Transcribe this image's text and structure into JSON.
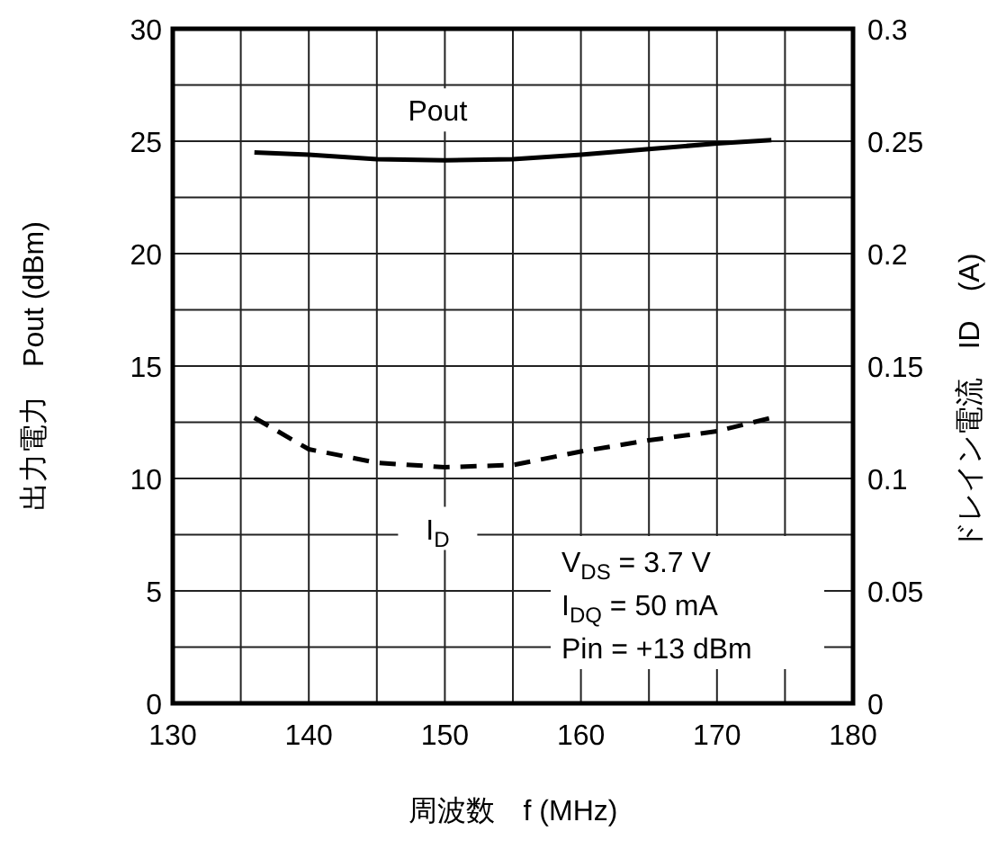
{
  "chart_data": {
    "type": "line",
    "xlabel": "周波数　f (MHz)",
    "ylabel": "出力電力　Pout (dBm)",
    "y2label": "ドレイン電流　ID　(A)",
    "xlim": [
      130,
      180
    ],
    "xticks": [
      130,
      140,
      150,
      160,
      170,
      180
    ],
    "ylim": [
      0,
      30
    ],
    "yticks": [
      0,
      5,
      10,
      15,
      20,
      25,
      30
    ],
    "y2lim": [
      0,
      0.3
    ],
    "y2ticks": [
      0,
      0.05,
      0.1,
      0.15,
      0.2,
      0.25,
      0.3
    ],
    "grid": true,
    "series": [
      {
        "name": "Pout",
        "color": "#000000",
        "line_style": "solid",
        "x": [
          136,
          140,
          145,
          150,
          155,
          160,
          165,
          170,
          174
        ],
        "values": [
          24.5,
          24.4,
          24.2,
          24.15,
          24.2,
          24.4,
          24.65,
          24.9,
          25.05
        ]
      },
      {
        "name": "I$_{D}$",
        "color": "#000000",
        "line_style": "dashed",
        "axis": "y2",
        "x": [
          136,
          140,
          145,
          150,
          155,
          160,
          165,
          170,
          174
        ],
        "values": [
          0.127,
          0.113,
          0.107,
          0.105,
          0.106,
          0.112,
          0.117,
          0.121,
          0.127
        ]
      }
    ],
    "annotations": [
      "V$_{DS}$ = 3.7 V",
      "I$_{DQ}$ = 50 mA",
      "Pin = +13 dBm"
    ]
  }
}
